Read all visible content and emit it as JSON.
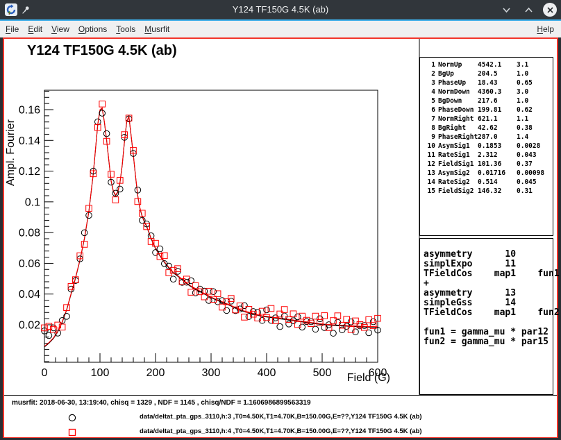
{
  "window": {
    "title": "Y124 TF150G 4.5K (ab)",
    "menu": [
      "File",
      "Edit",
      "View",
      "Options",
      "Tools",
      "Musrfit"
    ],
    "menu_right": "Help"
  },
  "canvas": {
    "border_color": "#f23329",
    "plot_title": "Y124 TF150G 4.5K (ab)"
  },
  "parameters": {
    "rows": [
      [
        "1",
        "NormUp",
        "4542.1",
        "3.1"
      ],
      [
        "2",
        "BgUp",
        "204.5",
        "1.0"
      ],
      [
        "3",
        "PhaseUp",
        "18.43",
        "0.65"
      ],
      [
        "4",
        "NormDown",
        "4360.3",
        "3.0"
      ],
      [
        "5",
        "BgDown",
        "217.6",
        "1.0"
      ],
      [
        "6",
        "PhaseDown",
        "199.81",
        "0.62"
      ],
      [
        "7",
        "NormRight",
        "621.1",
        "1.1"
      ],
      [
        "8",
        "BgRight",
        "42.62",
        "0.38"
      ],
      [
        "9",
        "PhaseRight",
        "287.0",
        "1.4"
      ],
      [
        "10",
        "AsymSig1",
        "0.1853",
        "0.0028"
      ],
      [
        "11",
        "RateSig1",
        "2.312",
        "0.043"
      ],
      [
        "12",
        "FieldSig1",
        "101.36",
        "0.37"
      ],
      [
        "13",
        "AsymSig2",
        "0.01716",
        "0.00098"
      ],
      [
        "14",
        "RateSig2",
        "0.514",
        "0.045"
      ],
      [
        "15",
        "FieldSig2",
        "146.32",
        "0.31"
      ]
    ]
  },
  "theory": {
    "lines": [
      "asymmetry      10",
      "simplExpo      11",
      "TFieldCos    map1    fun1",
      "+",
      "asymmetry      13",
      "simpleGss      14",
      "TFieldCos    map1    fun2",
      "",
      "fun1 = gamma_mu * par12",
      "fun2 = gamma_mu * par15"
    ]
  },
  "footer": {
    "status": "musrfit: 2018-06-30, 13:19:40, chisq = 1329 , NDF = 1145 , chisq/NDF = 1.1606986899563319",
    "legend": [
      {
        "marker": "open-circle",
        "color": "#000000",
        "label": "data/deltat_pta_gps_3110,h:3 ,T0=4.50K,T1=4.70K,B=150.00G,E=??,Y124 TF150G 4.5K (ab)"
      },
      {
        "marker": "open-square",
        "color": "#ff0000",
        "label": "data/deltat_pta_gps_3110,h:4 ,T0=4.50K,T1=4.70K,B=150.00G,E=??,Y124 TF150G 4.5K (ab)"
      }
    ]
  },
  "chart_data": {
    "type": "scatter",
    "title": "Y124 TF150G 4.5K (ab)",
    "xlabel": "Field (G)",
    "ylabel": "Ampl. Fourier",
    "xlim": [
      0,
      600
    ],
    "ylim": [
      -0.0044,
      0.17265
    ],
    "xticks": [
      0,
      100,
      200,
      300,
      400,
      500,
      600
    ],
    "x_minor_step": 20,
    "yticks": [
      0.02,
      0.04,
      0.06,
      0.08,
      0.1,
      0.12,
      0.14,
      0.16
    ],
    "ytick_labels": [
      "0.02",
      "0.04",
      "0.06",
      "0.08",
      "0.1",
      "0.12",
      "0.14",
      "0.16"
    ],
    "y_minor_step": 0.004,
    "grid": false,
    "legend_position": "bottom",
    "fit": {
      "colors": [
        "#000000",
        "#ff0000"
      ],
      "points": [
        [
          0,
          0.006
        ],
        [
          8,
          0.0084
        ],
        [
          16,
          0.0114
        ],
        [
          24,
          0.0158
        ],
        [
          32,
          0.022
        ],
        [
          40,
          0.03
        ],
        [
          48,
          0.0404
        ],
        [
          56,
          0.0508
        ],
        [
          64,
          0.0624
        ],
        [
          72,
          0.0764
        ],
        [
          80,
          0.094
        ],
        [
          88,
          0.1188
        ],
        [
          96,
          0.1506
        ],
        [
          100,
          0.16
        ],
        [
          104,
          0.1612
        ],
        [
          108,
          0.152
        ],
        [
          112,
          0.1402
        ],
        [
          116,
          0.127
        ],
        [
          120,
          0.114
        ],
        [
          124,
          0.1072
        ],
        [
          128,
          0.1045
        ],
        [
          132,
          0.1065
        ],
        [
          136,
          0.1128
        ],
        [
          140,
          0.124
        ],
        [
          144,
          0.1392
        ],
        [
          148,
          0.152
        ],
        [
          152,
          0.156
        ],
        [
          156,
          0.1435
        ],
        [
          160,
          0.131
        ],
        [
          164,
          0.117
        ],
        [
          168,
          0.1042
        ],
        [
          172,
          0.096
        ],
        [
          176,
          0.0908
        ],
        [
          180,
          0.0872
        ],
        [
          184,
          0.0844
        ],
        [
          192,
          0.0764
        ],
        [
          200,
          0.07
        ],
        [
          208,
          0.0652
        ],
        [
          216,
          0.061
        ],
        [
          224,
          0.0574
        ],
        [
          232,
          0.0542
        ],
        [
          240,
          0.052
        ],
        [
          248,
          0.0496
        ],
        [
          256,
          0.0472
        ],
        [
          264,
          0.0452
        ],
        [
          272,
          0.0436
        ],
        [
          280,
          0.042
        ],
        [
          288,
          0.0404
        ],
        [
          296,
          0.0388
        ],
        [
          304,
          0.0374
        ],
        [
          312,
          0.0362
        ],
        [
          320,
          0.035
        ],
        [
          328,
          0.0338
        ],
        [
          336,
          0.0326
        ],
        [
          344,
          0.0312
        ],
        [
          352,
          0.0298
        ],
        [
          360,
          0.029
        ],
        [
          368,
          0.0282
        ],
        [
          376,
          0.0274
        ],
        [
          384,
          0.0266
        ],
        [
          392,
          0.0258
        ],
        [
          400,
          0.0255
        ],
        [
          408,
          0.0251
        ],
        [
          416,
          0.0247
        ],
        [
          424,
          0.0243
        ],
        [
          432,
          0.0239
        ],
        [
          440,
          0.0235
        ],
        [
          448,
          0.0231
        ],
        [
          456,
          0.0227
        ],
        [
          464,
          0.0223
        ],
        [
          472,
          0.0219
        ],
        [
          480,
          0.0215
        ],
        [
          488,
          0.0211
        ],
        [
          496,
          0.0207
        ],
        [
          504,
          0.0204
        ],
        [
          512,
          0.0202
        ],
        [
          520,
          0.02
        ],
        [
          528,
          0.0198
        ],
        [
          536,
          0.0197
        ],
        [
          544,
          0.0195
        ],
        [
          552,
          0.0194
        ],
        [
          560,
          0.0192
        ],
        [
          568,
          0.0191
        ],
        [
          576,
          0.019
        ],
        [
          584,
          0.0188
        ],
        [
          592,
          0.0188
        ],
        [
          600,
          0.0187
        ]
      ]
    },
    "series": [
      {
        "name": "data/deltat_pta_gps_3110,h:3 ,T0=4.50K,T1=4.70K,B=150.00G,E=??,Y124 TF150G 4.5K (ab)",
        "marker": "open-circle",
        "color": "#000000",
        "points": [
          [
            0,
            0.016
          ],
          [
            8,
            0.013
          ],
          [
            16,
            0.018
          ],
          [
            24,
            0.0146
          ],
          [
            32,
            0.0228
          ],
          [
            40,
            0.0255
          ],
          [
            48,
            0.0432
          ],
          [
            56,
            0.0488
          ],
          [
            64,
            0.0629
          ],
          [
            72,
            0.0799
          ],
          [
            80,
            0.0912
          ],
          [
            88,
            0.12
          ],
          [
            96,
            0.1521
          ],
          [
            104,
            0.1577
          ],
          [
            112,
            0.1444
          ],
          [
            120,
            0.1128
          ],
          [
            128,
            0.1056
          ],
          [
            136,
            0.1083
          ],
          [
            144,
            0.142
          ],
          [
            152,
            0.154
          ],
          [
            160,
            0.1315
          ],
          [
            168,
            0.1077
          ],
          [
            176,
            0.088
          ],
          [
            184,
            0.0856
          ],
          [
            192,
            0.0779
          ],
          [
            200,
            0.067
          ],
          [
            208,
            0.0694
          ],
          [
            216,
            0.0598
          ],
          [
            224,
            0.0582
          ],
          [
            232,
            0.0497
          ],
          [
            240,
            0.0548
          ],
          [
            248,
            0.0476
          ],
          [
            256,
            0.0477
          ],
          [
            264,
            0.0487
          ],
          [
            272,
            0.0408
          ],
          [
            280,
            0.0432
          ],
          [
            288,
            0.0419
          ],
          [
            296,
            0.0358
          ],
          [
            304,
            0.0416
          ],
          [
            312,
            0.035
          ],
          [
            320,
            0.0358
          ],
          [
            328,
            0.0293
          ],
          [
            336,
            0.0354
          ],
          [
            344,
            0.0292
          ],
          [
            352,
            0.0303
          ],
          [
            360,
            0.0325
          ],
          [
            368,
            0.0254
          ],
          [
            376,
            0.0286
          ],
          [
            384,
            0.0281
          ],
          [
            392,
            0.0228
          ],
          [
            400,
            0.0297
          ],
          [
            408,
            0.0229
          ],
          [
            416,
            0.0245
          ],
          [
            424,
            0.0188
          ],
          [
            432,
            0.0257
          ],
          [
            440,
            0.0205
          ],
          [
            448,
            0.0226
          ],
          [
            456,
            0.0252
          ],
          [
            464,
            0.0185
          ],
          [
            472,
            0.0221
          ],
          [
            480,
            0.022
          ],
          [
            488,
            0.0171
          ],
          [
            496,
            0.0239
          ],
          [
            504,
            0.0182
          ],
          [
            512,
            0.02
          ],
          [
            520,
            0.0145
          ],
          [
            528,
            0.0216
          ],
          [
            536,
            0.0167
          ],
          [
            544,
            0.019
          ],
          [
            552,
            0.0219
          ],
          [
            560,
            0.0154
          ],
          [
            568,
            0.0193
          ],
          [
            576,
            0.0195
          ],
          [
            584,
            0.0148
          ],
          [
            592,
            0.022
          ],
          [
            600,
            0.0165
          ]
        ]
      },
      {
        "name": "data/deltat_pta_gps_3110,h:4 ,T0=4.50K,T1=4.70K,B=150.00G,E=??,Y124 TF150G 4.5K (ab)",
        "marker": "open-square",
        "color": "#ff0000",
        "points": [
          [
            0,
            0.018
          ],
          [
            8,
            0.019
          ],
          [
            16,
            0.017
          ],
          [
            24,
            0.0198
          ],
          [
            32,
            0.0185
          ],
          [
            40,
            0.0312
          ],
          [
            48,
            0.0449
          ],
          [
            56,
            0.0493
          ],
          [
            64,
            0.0649
          ],
          [
            72,
            0.0724
          ],
          [
            80,
            0.0958
          ],
          [
            88,
            0.1183
          ],
          [
            96,
            0.1484
          ],
          [
            104,
            0.1637
          ],
          [
            112,
            0.1394
          ],
          [
            120,
            0.118
          ],
          [
            128,
            0.1013
          ],
          [
            136,
            0.114
          ],
          [
            144,
            0.1437
          ],
          [
            152,
            0.1545
          ],
          [
            160,
            0.1335
          ],
          [
            168,
            0.1002
          ],
          [
            176,
            0.0926
          ],
          [
            184,
            0.0839
          ],
          [
            192,
            0.0742
          ],
          [
            200,
            0.073
          ],
          [
            208,
            0.0644
          ],
          [
            216,
            0.065
          ],
          [
            224,
            0.0539
          ],
          [
            232,
            0.0554
          ],
          [
            240,
            0.0565
          ],
          [
            248,
            0.0481
          ],
          [
            256,
            0.0497
          ],
          [
            264,
            0.0412
          ],
          [
            272,
            0.0454
          ],
          [
            280,
            0.0415
          ],
          [
            288,
            0.0382
          ],
          [
            296,
            0.0418
          ],
          [
            304,
            0.0366
          ],
          [
            312,
            0.0402
          ],
          [
            320,
            0.0315
          ],
          [
            328,
            0.035
          ],
          [
            336,
            0.0371
          ],
          [
            344,
            0.0297
          ],
          [
            352,
            0.0323
          ],
          [
            360,
            0.025
          ],
          [
            368,
            0.03
          ],
          [
            376,
            0.0269
          ],
          [
            384,
            0.0244
          ],
          [
            392,
            0.0288
          ],
          [
            400,
            0.0247
          ],
          [
            408,
            0.0306
          ],
          [
            416,
            0.0227
          ],
          [
            424,
            0.027
          ],
          [
            432,
            0.0299
          ],
          [
            440,
            0.0235
          ],
          [
            448,
            0.0271
          ],
          [
            456,
            0.0202
          ],
          [
            464,
            0.0256
          ],
          [
            472,
            0.0229
          ],
          [
            480,
            0.0208
          ],
          [
            488,
            0.0256
          ],
          [
            496,
            0.0214
          ],
          [
            504,
            0.0259
          ],
          [
            512,
            0.0182
          ],
          [
            520,
            0.0227
          ],
          [
            528,
            0.0258
          ],
          [
            536,
            0.0197
          ],
          [
            544,
            0.0235
          ],
          [
            552,
            0.0169
          ],
          [
            560,
            0.0225
          ],
          [
            568,
            0.0201
          ],
          [
            576,
            0.0183
          ],
          [
            584,
            0.0233
          ],
          [
            592,
            0.0195
          ],
          [
            600,
            0.0242
          ]
        ]
      }
    ]
  }
}
